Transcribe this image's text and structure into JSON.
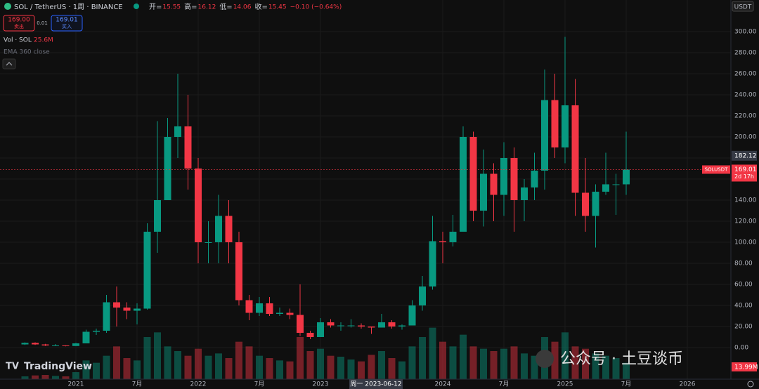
{
  "chart_data": {
    "type": "candlestick",
    "title": "SOL / TetherUS · 1周 · BINANCE",
    "ohlc_legend": [
      {
        "label": "开=",
        "value": 15.55
      },
      {
        "label": "高=",
        "value": 16.12
      },
      {
        "label": "低=",
        "value": 14.06
      },
      {
        "label": "收=",
        "value": 15.45
      }
    ],
    "change_label": "−0.10 (−0.64%)",
    "currency": "USDT",
    "sell_price": "169.00",
    "sell_text": "卖出",
    "spread": "0.01",
    "buy_price": "169.01",
    "buy_text": "买入",
    "volume_legend": "Vol · SOL",
    "volume_legend_value": "25.6M",
    "indicator": "EMA 360 close",
    "categories": [
      null,
      null,
      null,
      null,
      null,
      "2021",
      null,
      null,
      null,
      null,
      null,
      "7月",
      null,
      null,
      null,
      null,
      null,
      "2022",
      null,
      null,
      null,
      null,
      null,
      "7月",
      null,
      null,
      null,
      null,
      null,
      "2023",
      null,
      null,
      null,
      null,
      null,
      null,
      null,
      null,
      null,
      null,
      null,
      "2024",
      null,
      null,
      null,
      null,
      null,
      "7月",
      null,
      null,
      null,
      null,
      null,
      "2025",
      null,
      null,
      null,
      null,
      null,
      "7月",
      null,
      null,
      null,
      null,
      null,
      "2026",
      null,
      null,
      null
    ],
    "open": [
      3,
      4.5,
      3,
      2,
      2,
      1.5,
      4,
      15,
      16,
      43,
      38,
      35,
      37,
      110,
      140,
      200,
      210,
      170,
      100,
      100,
      125,
      100,
      45,
      33,
      42,
      32,
      33,
      31,
      14,
      10,
      24,
      21,
      21,
      21,
      20,
      19,
      24,
      20,
      21,
      40,
      58,
      101,
      100,
      110,
      200,
      130,
      165,
      145,
      180,
      140,
      152,
      168,
      235,
      190,
      230,
      147,
      125,
      148,
      155,
      155,
      null,
      null,
      null,
      null,
      null,
      null,
      null,
      null,
      null
    ],
    "high": [
      5,
      5,
      3.5,
      3.3,
      2.2,
      4.5,
      17,
      18,
      50,
      58,
      43,
      42,
      118,
      215,
      218,
      260,
      240,
      180,
      120,
      145,
      140,
      110,
      50,
      48,
      48,
      38,
      37,
      60,
      16,
      28,
      27,
      24,
      27,
      23,
      20,
      32,
      26,
      22,
      45,
      68,
      125,
      110,
      126,
      210,
      205,
      188,
      175,
      195,
      190,
      160,
      185,
      264,
      260,
      295,
      255,
      180,
      155,
      185,
      165,
      205,
      null,
      null,
      null,
      null,
      null,
      null,
      null,
      null,
      null
    ],
    "low": [
      2.5,
      2.5,
      1.5,
      1.8,
      1.2,
      1.5,
      4,
      12,
      14,
      20,
      27,
      22,
      36,
      90,
      140,
      180,
      150,
      80,
      80,
      80,
      80,
      40,
      26,
      30,
      30,
      30,
      27,
      11,
      8,
      10,
      19,
      16,
      19,
      18,
      13,
      19,
      18,
      17,
      21,
      35,
      55,
      80,
      96,
      110,
      120,
      115,
      120,
      125,
      110,
      120,
      140,
      150,
      180,
      175,
      125,
      110,
      95,
      145,
      126,
      145,
      null,
      null,
      null,
      null,
      null,
      null,
      null,
      null,
      null
    ],
    "close": [
      4.5,
      3,
      2,
      2,
      1.5,
      4,
      15,
      16,
      43,
      38,
      35,
      37,
      110,
      140,
      200,
      210,
      170,
      100,
      100,
      125,
      100,
      45,
      33,
      42,
      32,
      33,
      31,
      14,
      10,
      24,
      21,
      21,
      21,
      20,
      19,
      24,
      20,
      21,
      40,
      58,
      101,
      100,
      110,
      200,
      130,
      165,
      145,
      180,
      140,
      152,
      168,
      235,
      190,
      230,
      147,
      125,
      148,
      155,
      155,
      169.01,
      null,
      null,
      null,
      null,
      null,
      null,
      null,
      null,
      null
    ],
    "volume": [
      60,
      80,
      90,
      70,
      60,
      150,
      400,
      350,
      500,
      700,
      450,
      400,
      900,
      1000,
      700,
      600,
      500,
      650,
      500,
      550,
      450,
      800,
      700,
      500,
      450,
      400,
      380,
      900,
      600,
      650,
      500,
      480,
      420,
      380,
      520,
      600,
      450,
      380,
      700,
      900,
      1100,
      800,
      700,
      950,
      700,
      650,
      600,
      650,
      700,
      550,
      500,
      900,
      800,
      1000,
      700,
      650,
      550,
      500,
      450,
      350,
      null,
      null,
      null,
      null,
      null,
      null,
      null,
      null,
      null
    ],
    "up_color": "#089981",
    "down_color": "#f23645",
    "ylim": [
      -30,
      330
    ],
    "yticks": [
      {
        "value": 0,
        "label": "0.00"
      },
      {
        "value": 20,
        "label": "20.00"
      },
      {
        "value": 40,
        "label": "40.00"
      },
      {
        "value": 60,
        "label": "60.00"
      },
      {
        "value": 80,
        "label": "80.00"
      },
      {
        "value": 100,
        "label": "100.00"
      },
      {
        "value": 120,
        "label": "120.00"
      },
      {
        "value": 140,
        "label": "140.00"
      },
      {
        "value": 160,
        "label": "160.00"
      },
      {
        "value": 180,
        "label": "180.00"
      },
      {
        "value": 200,
        "label": "200.00"
      },
      {
        "value": 220,
        "label": "220.00"
      },
      {
        "value": 240,
        "label": "240.00"
      },
      {
        "value": 260,
        "label": "260.00"
      },
      {
        "value": 280,
        "label": "280.00"
      },
      {
        "value": 300,
        "label": "300.00"
      }
    ],
    "vlim": [
      0,
      1200
    ],
    "grid": true,
    "price_line": {
      "name": "SOLUSDT",
      "value": 169.01,
      "countdown": "2d 17h"
    },
    "high_marker": 182.12,
    "volume_marker": "13.99M",
    "crosshair_label": "周一 2023-06-12",
    "watermark": "公众号 · 土豆谈币",
    "brand": "TradingView"
  }
}
